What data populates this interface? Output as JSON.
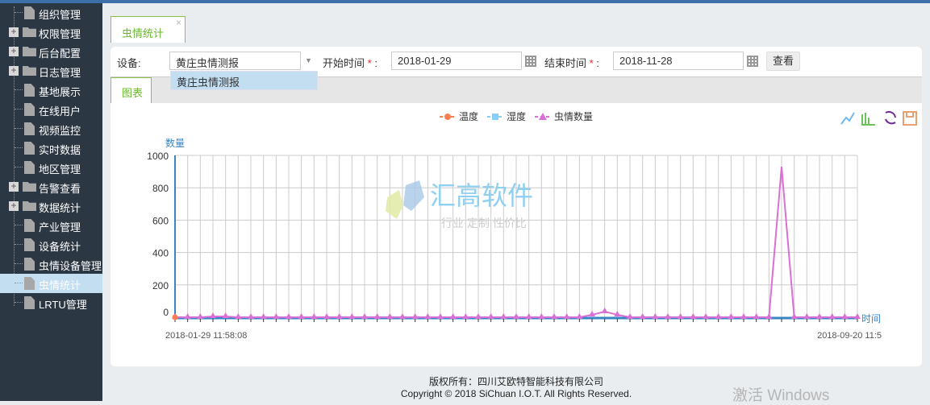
{
  "sidebar": {
    "items": [
      {
        "label": "组织管理",
        "type": "file"
      },
      {
        "label": "权限管理",
        "type": "folder"
      },
      {
        "label": "后台配置",
        "type": "folder"
      },
      {
        "label": "日志管理",
        "type": "folder"
      },
      {
        "label": "基地展示",
        "type": "file"
      },
      {
        "label": "在线用户",
        "type": "file"
      },
      {
        "label": "视频监控",
        "type": "file"
      },
      {
        "label": "实时数据",
        "type": "file"
      },
      {
        "label": "地区管理",
        "type": "file"
      },
      {
        "label": "告警查看",
        "type": "folder"
      },
      {
        "label": "数据统计",
        "type": "folder"
      },
      {
        "label": "产业管理",
        "type": "file"
      },
      {
        "label": "设备统计",
        "type": "file"
      },
      {
        "label": "虫情设备管理",
        "type": "file"
      },
      {
        "label": "虫情统计",
        "type": "file",
        "selected": true
      },
      {
        "label": "LRTU管理",
        "type": "file"
      }
    ]
  },
  "tab": {
    "label": "虫情统计",
    "close": "×"
  },
  "form": {
    "device_label": "设备:",
    "device_value": "黄庄虫情测报",
    "dropdown_option": "黄庄虫情测报",
    "start_label": "开始时间",
    "start_value": "2018-01-29",
    "end_label": "结束时间",
    "end_value": "2018-11-28",
    "required": "*",
    "colon": ":",
    "query": "查看"
  },
  "chart_tab": "图表",
  "watermark": {
    "title": "汇高软件",
    "slogan": "行业 定制 性价比"
  },
  "toolbox": [
    "line-chart-icon",
    "bar-chart-icon",
    "refresh-icon",
    "save-icon"
  ],
  "colors": {
    "temp": "#ff7f50",
    "humidity": "#87cefa",
    "pest": "#da70d6",
    "axis": "#3a84c4",
    "accent": "#6ab82d"
  },
  "chart_data": {
    "type": "line",
    "ylabel": "数量",
    "xlabel": "时间",
    "ylim": [
      0,
      1000
    ],
    "yticks": [
      0,
      200,
      400,
      600,
      800,
      1000
    ],
    "grid": true,
    "legend": "top-center",
    "x_first": "2018-01-29 11:58:08",
    "x_last": "2018-09-20 11:5",
    "series": [
      {
        "name": "温度",
        "marker": "circle",
        "values": [
          0
        ]
      },
      {
        "name": "湿度",
        "marker": "square",
        "values": []
      },
      {
        "name": "虫情数量",
        "marker": "triangle",
        "values": [
          0,
          0,
          0,
          5,
          5,
          0,
          0,
          0,
          0,
          0,
          0,
          0,
          0,
          0,
          0,
          0,
          0,
          0,
          0,
          0,
          0,
          0,
          0,
          0,
          0,
          0,
          0,
          0,
          0,
          0,
          0,
          0,
          0,
          15,
          35,
          15,
          0,
          0,
          0,
          0,
          0,
          0,
          0,
          0,
          0,
          0,
          0,
          0,
          930,
          0,
          0,
          0,
          0,
          0,
          0
        ]
      }
    ]
  },
  "footer": {
    "line1": "版权所有：四川艾欧特智能科技有限公司",
    "line2": "Copyright © 2018 SiChuan I.O.T. All Rights Reserved."
  },
  "os_watermark": "激活 Windows"
}
